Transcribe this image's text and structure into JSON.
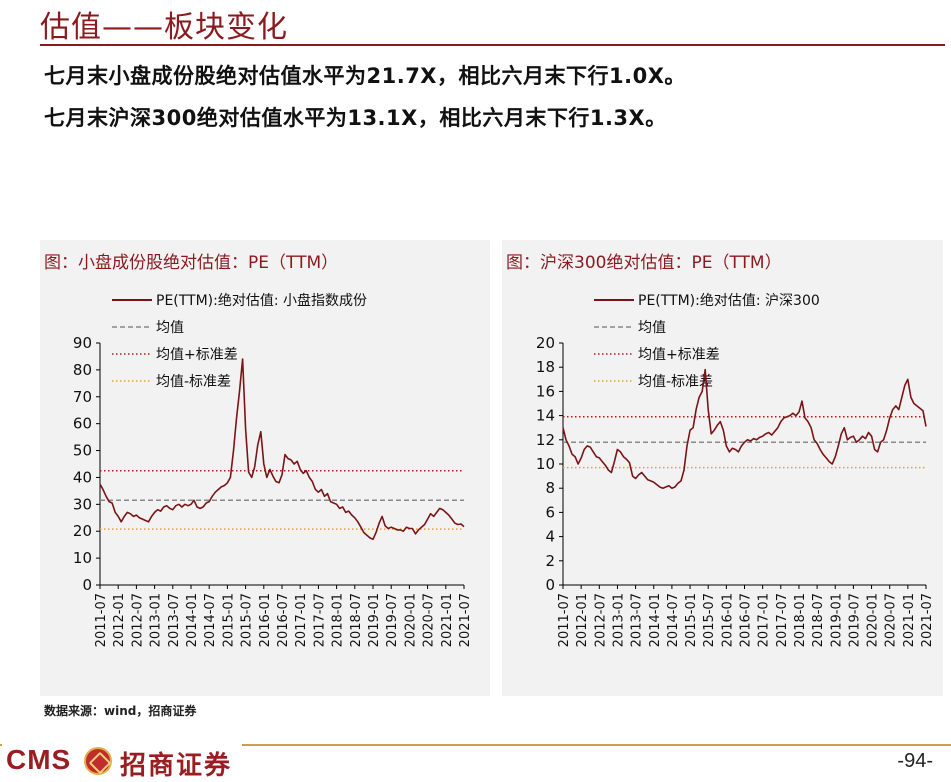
{
  "page": {
    "title": "估值——板块变化",
    "summary_line1": "七月末小盘成份股绝对估值水平为21.7X，相比六月末下行1.0X。",
    "summary_line2": "七月末沪深300绝对估值水平为13.1X，相比六月末下行1.3X。",
    "source": "数据来源：wind，招商证券",
    "page_number": "-94-",
    "logo_cms": "CMS",
    "logo_text": "招商证券"
  },
  "colors": {
    "pe_line": "#7b1416",
    "mean_line": "#888888",
    "upper_band": "#c0141c",
    "lower_band": "#e6a51e",
    "accent": "#8b1a1f"
  },
  "chart_data": [
    {
      "type": "line",
      "caption": "图：小盘成份股绝对估值：PE（TTM）",
      "legend": {
        "placement": "top",
        "pe": "PE(TTM):绝对估值: 小盘指数成份",
        "mean": "均值",
        "upper": "均值+标准差",
        "lower": "均值-标准差"
      },
      "ylim": [
        0,
        90
      ],
      "yticks": [
        0,
        10,
        20,
        30,
        40,
        50,
        60,
        70,
        80,
        90
      ],
      "xlim": [
        "2011-07",
        "2021-07"
      ],
      "xticks": [
        "2011-07",
        "2012-01",
        "2012-07",
        "2013-01",
        "2013-07",
        "2014-01",
        "2014-07",
        "2015-01",
        "2015-07",
        "2016-01",
        "2016-07",
        "2017-01",
        "2017-07",
        "2018-01",
        "2018-07",
        "2019-01",
        "2019-07",
        "2020-01",
        "2020-07",
        "2021-01",
        "2021-07"
      ],
      "mean": 31.5,
      "upper": 42.5,
      "lower": 20.8,
      "series": [
        {
          "x": [
            "2011-07",
            "2011-08",
            "2011-09",
            "2011-10",
            "2011-11",
            "2011-12",
            "2012-01",
            "2012-02",
            "2012-03",
            "2012-04",
            "2012-05",
            "2012-06",
            "2012-07",
            "2012-08",
            "2012-09",
            "2012-10",
            "2012-11",
            "2012-12",
            "2013-01",
            "2013-02",
            "2013-03",
            "2013-04",
            "2013-05",
            "2013-06",
            "2013-07",
            "2013-08",
            "2013-09",
            "2013-10",
            "2013-11",
            "2013-12",
            "2014-01",
            "2014-02",
            "2014-03",
            "2014-04",
            "2014-05",
            "2014-06",
            "2014-07",
            "2014-08",
            "2014-09",
            "2014-10",
            "2014-11",
            "2014-12",
            "2015-01",
            "2015-02",
            "2015-03",
            "2015-04",
            "2015-05",
            "2015-06",
            "2015-07",
            "2015-08",
            "2015-09",
            "2015-10",
            "2015-11",
            "2015-12",
            "2016-01",
            "2016-02",
            "2016-03",
            "2016-04",
            "2016-05",
            "2016-06",
            "2016-07",
            "2016-08",
            "2016-09",
            "2016-10",
            "2016-11",
            "2016-12",
            "2017-01",
            "2017-02",
            "2017-03",
            "2017-04",
            "2017-05",
            "2017-06",
            "2017-07",
            "2017-08",
            "2017-09",
            "2017-10",
            "2017-11",
            "2017-12",
            "2018-01",
            "2018-02",
            "2018-03",
            "2018-04",
            "2018-05",
            "2018-06",
            "2018-07",
            "2018-08",
            "2018-09",
            "2018-10",
            "2018-11",
            "2018-12",
            "2019-01",
            "2019-02",
            "2019-03",
            "2019-04",
            "2019-05",
            "2019-06",
            "2019-07",
            "2019-08",
            "2019-09",
            "2019-10",
            "2019-11",
            "2019-12",
            "2020-01",
            "2020-02",
            "2020-03",
            "2020-04",
            "2020-05",
            "2020-06",
            "2020-07",
            "2020-08",
            "2020-09",
            "2020-10",
            "2020-11",
            "2020-12",
            "2021-01",
            "2021-02",
            "2021-03",
            "2021-04",
            "2021-05",
            "2021-06",
            "2021-07"
          ],
          "values": [
            37.5,
            35.5,
            33.0,
            31.0,
            30.5,
            27.0,
            25.5,
            23.5,
            25.5,
            27.0,
            26.5,
            25.5,
            26.0,
            25.0,
            24.5,
            24.0,
            23.5,
            25.5,
            27.0,
            28.0,
            27.5,
            29.0,
            29.5,
            28.5,
            28.0,
            29.5,
            30.0,
            29.0,
            30.0,
            29.5,
            30.0,
            31.5,
            29.0,
            28.5,
            29.0,
            30.5,
            31.0,
            33.0,
            34.5,
            35.5,
            36.5,
            37.0,
            38.0,
            40.0,
            50.0,
            62.0,
            72.0,
            84.0,
            58.0,
            42.0,
            40.0,
            44.0,
            52.0,
            57.0,
            45.0,
            40.0,
            43.0,
            40.5,
            38.5,
            38.0,
            41.0,
            48.5,
            47.0,
            46.5,
            45.0,
            46.0,
            43.0,
            41.5,
            42.5,
            40.0,
            38.5,
            35.5,
            34.5,
            35.5,
            33.0,
            34.0,
            31.0,
            30.5,
            30.0,
            28.5,
            29.0,
            27.0,
            27.5,
            26.0,
            25.0,
            23.5,
            21.5,
            19.5,
            18.5,
            17.5,
            17.0,
            19.5,
            23.0,
            25.5,
            22.0,
            21.0,
            21.5,
            21.0,
            20.5,
            20.5,
            20.0,
            21.5,
            21.0,
            21.0,
            19.0,
            20.5,
            21.5,
            22.5,
            24.5,
            26.5,
            25.5,
            27.0,
            28.5,
            28.0,
            27.0,
            26.0,
            24.5,
            23.0,
            22.5,
            22.7,
            21.7
          ]
        }
      ]
    },
    {
      "type": "line",
      "caption": "图：沪深300绝对估值：PE（TTM）",
      "legend": {
        "placement": "top",
        "pe": "PE(TTM):绝对估值: 沪深300",
        "mean": "均值",
        "upper": "均值+标准差",
        "lower": "均值-标准差"
      },
      "ylim": [
        0,
        20
      ],
      "yticks": [
        0,
        2,
        4,
        6,
        8,
        10,
        12,
        14,
        16,
        18,
        20
      ],
      "xlim": [
        "2011-07",
        "2021-07"
      ],
      "xticks": [
        "2011-07",
        "2012-01",
        "2012-07",
        "2013-01",
        "2013-07",
        "2014-01",
        "2014-07",
        "2015-01",
        "2015-07",
        "2016-01",
        "2016-07",
        "2017-01",
        "2017-07",
        "2018-01",
        "2018-07",
        "2019-01",
        "2019-07",
        "2020-01",
        "2020-07",
        "2021-01",
        "2021-07"
      ],
      "mean": 11.8,
      "upper": 13.9,
      "lower": 9.7,
      "series": [
        {
          "x": [
            "2011-07",
            "2011-08",
            "2011-09",
            "2011-10",
            "2011-11",
            "2011-12",
            "2012-01",
            "2012-02",
            "2012-03",
            "2012-04",
            "2012-05",
            "2012-06",
            "2012-07",
            "2012-08",
            "2012-09",
            "2012-10",
            "2012-11",
            "2012-12",
            "2013-01",
            "2013-02",
            "2013-03",
            "2013-04",
            "2013-05",
            "2013-06",
            "2013-07",
            "2013-08",
            "2013-09",
            "2013-10",
            "2013-11",
            "2013-12",
            "2014-01",
            "2014-02",
            "2014-03",
            "2014-04",
            "2014-05",
            "2014-06",
            "2014-07",
            "2014-08",
            "2014-09",
            "2014-10",
            "2014-11",
            "2014-12",
            "2015-01",
            "2015-02",
            "2015-03",
            "2015-04",
            "2015-05",
            "2015-06",
            "2015-07",
            "2015-08",
            "2015-09",
            "2015-10",
            "2015-11",
            "2015-12",
            "2016-01",
            "2016-02",
            "2016-03",
            "2016-04",
            "2016-05",
            "2016-06",
            "2016-07",
            "2016-08",
            "2016-09",
            "2016-10",
            "2016-11",
            "2016-12",
            "2017-01",
            "2017-02",
            "2017-03",
            "2017-04",
            "2017-05",
            "2017-06",
            "2017-07",
            "2017-08",
            "2017-09",
            "2017-10",
            "2017-11",
            "2017-12",
            "2018-01",
            "2018-02",
            "2018-03",
            "2018-04",
            "2018-05",
            "2018-06",
            "2018-07",
            "2018-08",
            "2018-09",
            "2018-10",
            "2018-11",
            "2018-12",
            "2019-01",
            "2019-02",
            "2019-03",
            "2019-04",
            "2019-05",
            "2019-06",
            "2019-07",
            "2019-08",
            "2019-09",
            "2019-10",
            "2019-11",
            "2019-12",
            "2020-01",
            "2020-02",
            "2020-03",
            "2020-04",
            "2020-05",
            "2020-06",
            "2020-07",
            "2020-08",
            "2020-09",
            "2020-10",
            "2020-11",
            "2020-12",
            "2021-01",
            "2021-02",
            "2021-03",
            "2021-04",
            "2021-05",
            "2021-06",
            "2021-07"
          ],
          "values": [
            13.0,
            12.0,
            11.5,
            10.8,
            10.6,
            10.0,
            10.5,
            11.2,
            11.5,
            11.4,
            11.0,
            10.6,
            10.5,
            10.2,
            9.9,
            9.5,
            9.3,
            10.2,
            11.2,
            11.0,
            10.6,
            10.4,
            10.1,
            9.0,
            8.8,
            9.1,
            9.3,
            9.0,
            8.7,
            8.6,
            8.5,
            8.3,
            8.1,
            8.0,
            8.1,
            8.2,
            8.0,
            8.1,
            8.4,
            8.6,
            9.5,
            11.5,
            12.8,
            13.0,
            14.5,
            15.5,
            16.0,
            17.8,
            14.5,
            12.5,
            12.8,
            13.2,
            13.5,
            12.8,
            11.5,
            11.0,
            11.3,
            11.2,
            11.0,
            11.5,
            11.8,
            12.0,
            11.9,
            12.1,
            12.0,
            12.2,
            12.3,
            12.5,
            12.6,
            12.4,
            12.7,
            13.0,
            13.5,
            13.8,
            13.9,
            14.0,
            14.2,
            14.0,
            14.3,
            15.2,
            13.8,
            13.5,
            13.0,
            12.0,
            11.7,
            11.2,
            10.8,
            10.5,
            10.2,
            10.0,
            10.6,
            11.5,
            12.5,
            13.0,
            12.0,
            12.2,
            12.3,
            11.8,
            12.0,
            12.3,
            12.1,
            12.6,
            12.3,
            11.2,
            11.0,
            11.8,
            12.0,
            12.8,
            13.8,
            14.5,
            14.8,
            14.5,
            15.5,
            16.5,
            17.0,
            15.5,
            15.0,
            14.8,
            14.6,
            14.4,
            13.1
          ]
        }
      ]
    }
  ]
}
